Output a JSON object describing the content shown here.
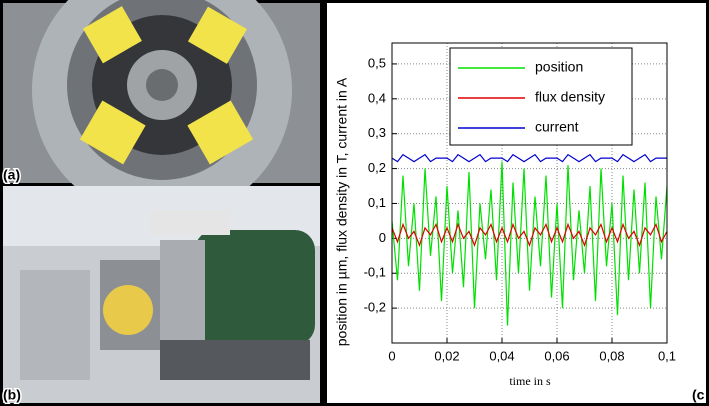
{
  "panel_labels": [
    "(a)",
    "(b)",
    "(c"
  ],
  "chart_data": {
    "type": "line",
    "xlabel": "time in s",
    "ylabel": "position in µm, flux density in T, current in A",
    "x": [
      0,
      0.002,
      0.004,
      0.006,
      0.008,
      0.01,
      0.012,
      0.014,
      0.016,
      0.018,
      0.02,
      0.022,
      0.024,
      0.026,
      0.028,
      0.03,
      0.032,
      0.034,
      0.036,
      0.038,
      0.04,
      0.042,
      0.044,
      0.046,
      0.048,
      0.05,
      0.052,
      0.054,
      0.056,
      0.058,
      0.06,
      0.062,
      0.064,
      0.066,
      0.068,
      0.07,
      0.072,
      0.074,
      0.076,
      0.078,
      0.08,
      0.082,
      0.084,
      0.086,
      0.088,
      0.09,
      0.092,
      0.094,
      0.096,
      0.098,
      0.1
    ],
    "series": [
      {
        "name": "position",
        "color": "#00e000",
        "values": [
          0.05,
          -0.12,
          0.18,
          -0.08,
          0.1,
          -0.15,
          0.2,
          -0.05,
          0.12,
          -0.18,
          0.15,
          -0.1,
          0.08,
          -0.14,
          0.19,
          -0.2,
          0.1,
          -0.06,
          0.14,
          -0.12,
          0.22,
          -0.25,
          0.16,
          -0.1,
          0.2,
          -0.15,
          0.12,
          -0.08,
          0.18,
          -0.17,
          0.1,
          -0.2,
          0.21,
          -0.12,
          0.08,
          -0.1,
          0.15,
          -0.18,
          0.2,
          -0.08,
          0.1,
          -0.22,
          0.18,
          -0.12,
          0.14,
          -0.1,
          0.16,
          -0.2,
          0.12,
          -0.06,
          0.15
        ]
      },
      {
        "name": "flux density",
        "color": "#e00000",
        "values": [
          0.03,
          -0.01,
          0.04,
          0,
          0.02,
          -0.02,
          0.03,
          0.01,
          0.04,
          -0.01,
          0.03,
          -0.01,
          0.04,
          0,
          0.02,
          -0.02,
          0.03,
          0.01,
          0.04,
          -0.01,
          0.03,
          -0.01,
          0.04,
          0,
          0.02,
          -0.02,
          0.03,
          0.01,
          0.04,
          -0.01,
          0.03,
          -0.01,
          0.04,
          0,
          0.02,
          -0.02,
          0.03,
          0.01,
          0.04,
          -0.01,
          0.03,
          -0.01,
          0.04,
          0,
          0.02,
          -0.02,
          0.03,
          0.01,
          0.04,
          -0.01,
          0.02
        ]
      },
      {
        "name": "current",
        "color": "#0000d0",
        "values": [
          0.23,
          0.22,
          0.24,
          0.23,
          0.22,
          0.23,
          0.24,
          0.22,
          0.23,
          0.23,
          0.23,
          0.22,
          0.24,
          0.23,
          0.22,
          0.23,
          0.24,
          0.22,
          0.23,
          0.23,
          0.23,
          0.22,
          0.24,
          0.23,
          0.22,
          0.23,
          0.24,
          0.22,
          0.23,
          0.23,
          0.23,
          0.22,
          0.24,
          0.23,
          0.22,
          0.23,
          0.24,
          0.22,
          0.23,
          0.23,
          0.23,
          0.22,
          0.24,
          0.23,
          0.22,
          0.23,
          0.24,
          0.22,
          0.23,
          0.23,
          0.23
        ]
      }
    ],
    "xlim": [
      0,
      0.1
    ],
    "xticks": [
      0,
      {
        "value": 0.02,
        "label": "0,02"
      },
      {
        "value": 0.04,
        "label": "0,04"
      },
      {
        "value": 0.06,
        "label": "0,06"
      },
      {
        "value": 0.08,
        "label": "0,08"
      },
      {
        "value": 0.1,
        "label": "0,1"
      }
    ],
    "ylim": [
      -0.3,
      0.56
    ],
    "yticks": [
      {
        "value": -0.2,
        "label": "-0,2"
      },
      {
        "value": -0.1,
        "label": "-0,1"
      },
      0,
      {
        "value": 0.1,
        "label": "0,1"
      },
      {
        "value": 0.2,
        "label": "0,2"
      },
      {
        "value": 0.3,
        "label": "0,3"
      },
      {
        "value": 0.4,
        "label": "0,4"
      },
      {
        "value": 0.5,
        "label": "0,5"
      }
    ],
    "grid": true,
    "legend": "upper right"
  }
}
